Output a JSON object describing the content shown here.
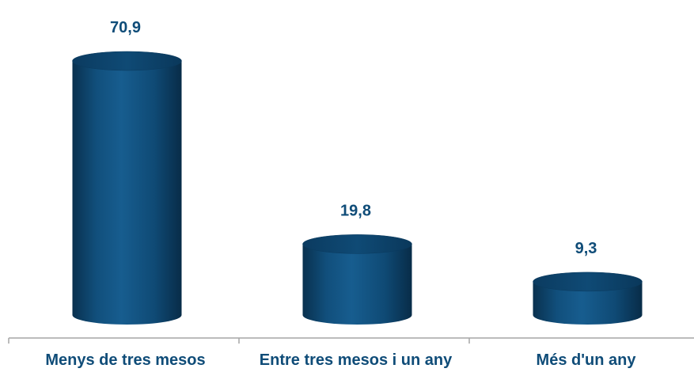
{
  "chart_data": {
    "type": "bar",
    "style": "3d-cylinder",
    "categories": [
      "Menys de tres mesos",
      "Entre tres mesos i un any",
      "Més d'un any"
    ],
    "values": [
      70.9,
      19.8,
      9.3
    ],
    "value_labels": [
      "70,9",
      "19,8",
      "9,3"
    ],
    "title": "",
    "xlabel": "",
    "ylabel": "",
    "ylim": [
      0,
      70.9
    ],
    "grid": false,
    "legend": "none"
  },
  "colors": {
    "bar": "#0f4c78",
    "bar_dark": "#0a3a5e",
    "bar_light": "#1a5f92",
    "bar_top": "#0d456e",
    "label_text": "#0f4c78",
    "axis": "#a6a6a6"
  }
}
